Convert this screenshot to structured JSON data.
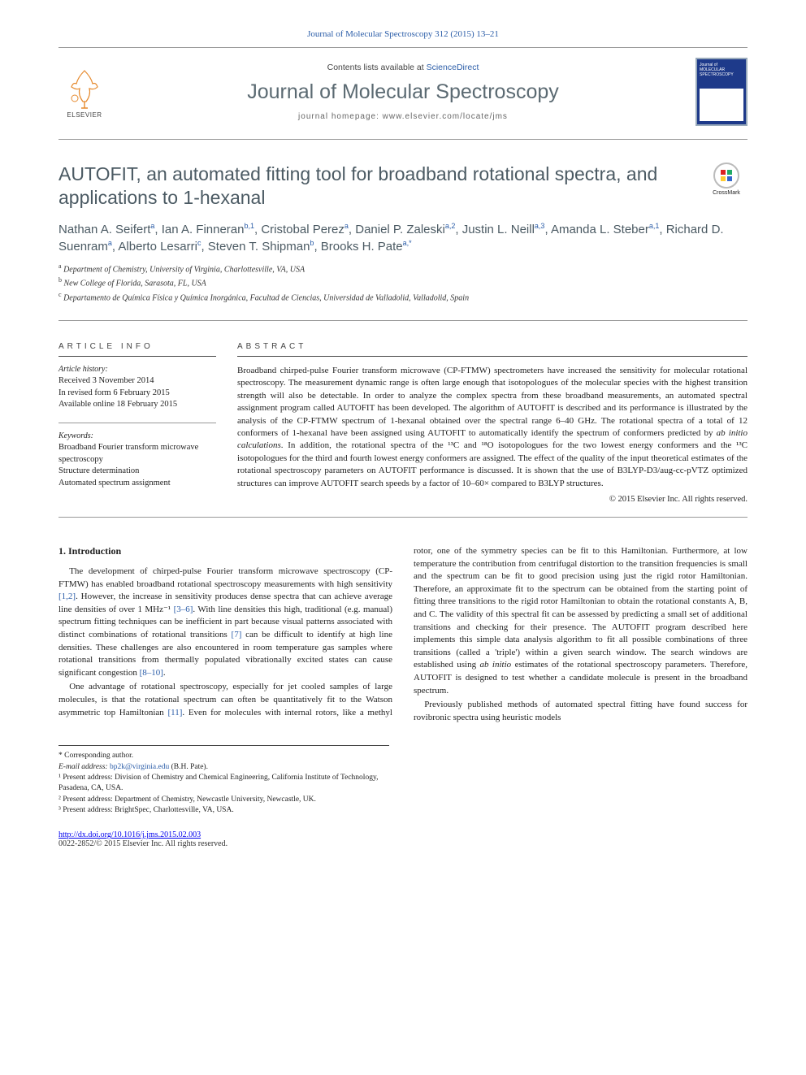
{
  "topCite": "Journal of Molecular Spectroscopy 312 (2015) 13–21",
  "header": {
    "avail_prefix": "Contents lists available at ",
    "avail_link": "ScienceDirect",
    "journal_name": "Journal of Molecular Spectroscopy",
    "homepage": "journal homepage: www.elsevier.com/locate/jms",
    "publisher_logo_text": "ELSEVIER",
    "cover_text": "Journal of MOLECULAR SPECTROSCOPY"
  },
  "crossmark_label": "CrossMark",
  "title": "AUTOFIT, an automated fitting tool for broadband rotational spectra, and applications to 1-hexanal",
  "authors_html": "Nathan A. Seifert<sup>a</sup>, Ian A. Finneran<sup>b,1</sup>, Cristobal Perez<sup>a</sup>, Daniel P. Zaleski<sup>a,2</sup>, Justin L. Neill<sup>a,3</sup>, Amanda L. Steber<sup>a,1</sup>, Richard D. Suenram<sup>a</sup>, Alberto Lesarri<sup>c</sup>, Steven T. Shipman<sup>b</sup>, Brooks H. Pate<sup>a,*</sup>",
  "affiliations": [
    {
      "sup": "a",
      "text": "Department of Chemistry, University of Virginia, Charlottesville, VA, USA"
    },
    {
      "sup": "b",
      "text": "New College of Florida, Sarasota, FL, USA"
    },
    {
      "sup": "c",
      "text": "Departamento de Química Física y Química Inorgánica, Facultad de Ciencias, Universidad de Valladolid, Valladolid, Spain"
    }
  ],
  "article_info": {
    "head": "ARTICLE INFO",
    "history_label": "Article history:",
    "history": "Received 3 November 2014\nIn revised form 6 February 2015\nAvailable online 18 February 2015",
    "keywords_label": "Keywords:",
    "keywords": "Broadband Fourier transform microwave spectroscopy\nStructure determination\nAutomated spectrum assignment"
  },
  "abstract": {
    "head": "ABSTRACT",
    "body": "Broadband chirped-pulse Fourier transform microwave (CP-FTMW) spectrometers have increased the sensitivity for molecular rotational spectroscopy. The measurement dynamic range is often large enough that isotopologues of the molecular species with the highest transition strength will also be detectable. In order to analyze the complex spectra from these broadband measurements, an automated spectral assignment program called AUTOFIT has been developed. The algorithm of AUTOFIT is described and its performance is illustrated by the analysis of the CP-FTMW spectrum of 1-hexanal obtained over the spectral range 6–40 GHz. The rotational spectra of a total of 12 conformers of 1-hexanal have been assigned using AUTOFIT to automatically identify the spectrum of conformers predicted by ",
    "body_em": "ab initio calculations",
    "body_tail": ". In addition, the rotational spectra of the ¹³C and ¹⁸O isotopologues for the two lowest energy conformers and the ¹³C isotopologues for the third and fourth lowest energy conformers are assigned. The effect of the quality of the input theoretical estimates of the rotational spectroscopy parameters on AUTOFIT performance is discussed. It is shown that the use of B3LYP-D3/aug-cc-pVTZ optimized structures can improve AUTOFIT search speeds by a factor of 10–60× compared to B3LYP structures.",
    "copyright": "© 2015 Elsevier Inc. All rights reserved."
  },
  "intro": {
    "heading": "1. Introduction",
    "p1a": "The development of chirped-pulse Fourier transform microwave spectroscopy (CP-FTMW) has enabled broadband rotational spectroscopy measurements with high sensitivity ",
    "p1_ref1": "[1,2]",
    "p1b": ". However, the increase in sensitivity produces dense spectra that can achieve average line densities of over 1 MHz⁻¹ ",
    "p1_ref2": "[3–6]",
    "p1c": ". With line densities this high, traditional (e.g. manual) spectrum fitting techniques can be inefficient in part because visual patterns associated with distinct combinations of rotational transitions ",
    "p1_ref3": "[7]",
    "p1d": " can be difficult to identify at high line densities. These challenges are also encountered in room temperature gas samples where rotational transitions from thermally populated vibrationally excited states can cause significant congestion ",
    "p1_ref4": "[8–10]",
    "p1e": ".",
    "p2a": "One advantage of rotational spectroscopy, especially for jet cooled samples of large molecules, is that the rotational spectrum can often be quantitatively fit to the Watson asymmetric top Hamiltonian ",
    "p2_ref1": "[11]",
    "p2b": ". Even for molecules with internal rotors, like a methyl rotor, one of the symmetry species can be fit to this Hamiltonian. Furthermore, at low temperature the contribution from centrifugal distortion to the transition frequencies is small and the spectrum can be fit to good precision using just the rigid rotor Hamiltonian. Therefore, an approximate fit to the spectrum can be obtained from the starting point of fitting three transitions to the rigid rotor Hamiltonian to obtain the rotational constants A, B, and C. The validity of this spectral fit can be assessed by predicting a small set of additional transitions and checking for their presence. The AUTOFIT program described here implements this simple data analysis algorithm to fit all possible combinations of three transitions (called a 'triple') within a given search window. The search windows are established using ",
    "p2_em": "ab initio",
    "p2c": " estimates of the rotational spectroscopy parameters. Therefore, AUTOFIT is designed to test whether a candidate molecule is present in the broadband spectrum.",
    "p3": "Previously published methods of automated spectral fitting have found success for rovibronic spectra using heuristic models"
  },
  "footnotes": {
    "corr_label": "* Corresponding author.",
    "email_label": "E-mail address:",
    "email": "bp2k@virginia.edu",
    "email_tail": " (B.H. Pate).",
    "n1": "¹ Present address: Division of Chemistry and Chemical Engineering, California Institute of Technology, Pasadena, CA, USA.",
    "n2": "² Present address: Department of Chemistry, Newcastle University, Newcastle, UK.",
    "n3": "³ Present address: BrightSpec, Charlottesville, VA, USA."
  },
  "footer": {
    "doi": "http://dx.doi.org/10.1016/j.jms.2015.02.003",
    "copyline": "0022-2852/© 2015 Elsevier Inc. All rights reserved."
  },
  "colors": {
    "link": "#2b5da8",
    "heading": "#4b5a63",
    "cover_bg": "#1e3a8a"
  }
}
